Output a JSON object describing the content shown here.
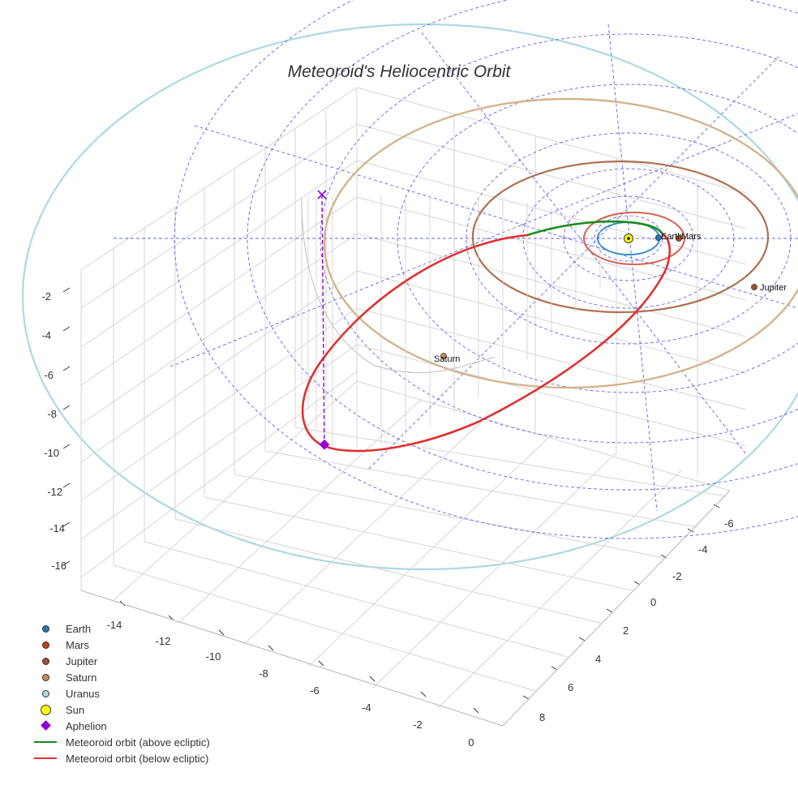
{
  "chart_data": {
    "type": "scatter",
    "title": "Meteoroid's Heliocentric Orbit",
    "axes": {
      "x": {
        "ticks": [
          -14,
          -12,
          -10,
          -8,
          -6,
          -4,
          -2,
          0
        ]
      },
      "y": {
        "ticks": [
          -6,
          -4,
          -2,
          0,
          2,
          4,
          6,
          8
        ]
      },
      "z": {
        "ticks": [
          -2,
          -4,
          -6,
          -8,
          -10,
          -12,
          -14,
          -16
        ]
      }
    },
    "planets": [
      {
        "name": "Earth",
        "label": "Earth",
        "color": "#1f77b4",
        "orbit_radius_au": 1.0
      },
      {
        "name": "Mars",
        "label": "Mars",
        "color": "#c1440e",
        "orbit_radius_au": 1.52
      },
      {
        "name": "Jupiter",
        "label": "Jupiter",
        "color": "#a0522d",
        "orbit_radius_au": 5.2
      },
      {
        "name": "Saturn",
        "label": "Saturn",
        "color": "#c88a5a",
        "orbit_radius_au": 9.5
      },
      {
        "name": "Uranus",
        "label": "",
        "color": "#add8e6",
        "orbit_radius_au": 19.2
      }
    ],
    "sun": {
      "name": "Sun",
      "color": "#ffff00",
      "x": 0,
      "y": 0,
      "z": 0
    },
    "aphelion": {
      "name": "Aphelion",
      "color": "#9400d3"
    },
    "orbit_segments": [
      {
        "name": "Meteoroid orbit (above ecliptic)",
        "color": "#1a8c1a"
      },
      {
        "name": "Meteoroid orbit (below ecliptic)",
        "color": "#e03030"
      }
    ],
    "legend": {
      "placement": "bottom-left"
    },
    "grid": true
  },
  "legend_items": [
    {
      "label": "Earth",
      "kind": "dot",
      "color": "#1f77b4"
    },
    {
      "label": "Mars",
      "kind": "dot",
      "color": "#c1440e"
    },
    {
      "label": "Jupiter",
      "kind": "dot",
      "color": "#a0522d"
    },
    {
      "label": "Saturn",
      "kind": "dot",
      "color": "#c88a5a"
    },
    {
      "label": "Uranus",
      "kind": "dot",
      "color": "#add8e6"
    },
    {
      "label": "Sun",
      "kind": "bigdot",
      "color": "#ffff00"
    },
    {
      "label": "Aphelion",
      "kind": "diamond",
      "color": "#9400d3"
    },
    {
      "label": "Meteoroid orbit (above ecliptic)",
      "kind": "line",
      "color": "#1a8c1a"
    },
    {
      "label": "Meteoroid orbit (below ecliptic)",
      "kind": "line",
      "color": "#e03030"
    }
  ]
}
